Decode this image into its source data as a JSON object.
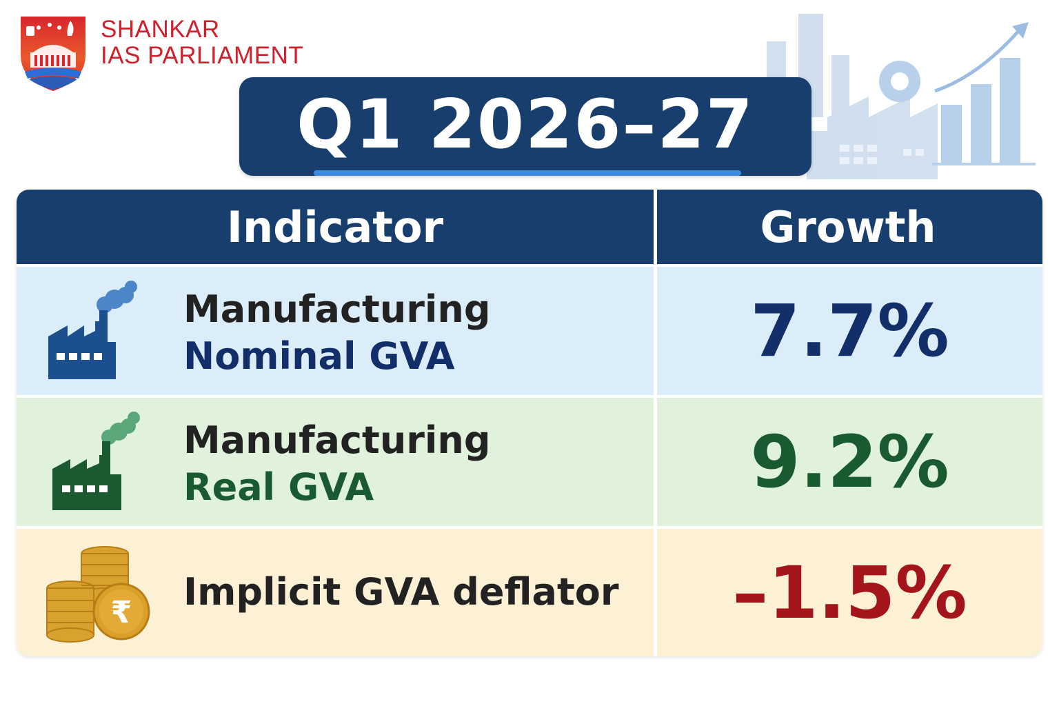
{
  "logo": {
    "line1": "SHANKAR",
    "line2": "IAS PARLIAMENT"
  },
  "title": "Q1 2026–27",
  "table": {
    "headers": {
      "indicator": "Indicator",
      "growth": "Growth"
    },
    "rows": [
      {
        "icon": "factory-icon",
        "label_line1": "Manufacturing",
        "label_line2": "Nominal GVA",
        "value": "7.7%",
        "color": "#132f6a"
      },
      {
        "icon": "factory-icon",
        "label_line1": "Manufacturing",
        "label_line2": "Real GVA",
        "value": "9.2%",
        "color": "#1a5a30"
      },
      {
        "icon": "rupee-coins-icon",
        "label_line1": "Implicit GVA deflator",
        "label_line2": "",
        "value": "–1.5%",
        "color": "#a3141b"
      }
    ]
  },
  "colors": {
    "header_bg": "#173e6d",
    "row1_bg": "#dcedfa",
    "row2_bg": "#e1f2dc",
    "row3_bg": "#fcf1d4",
    "brand_red": "#d0202b"
  }
}
